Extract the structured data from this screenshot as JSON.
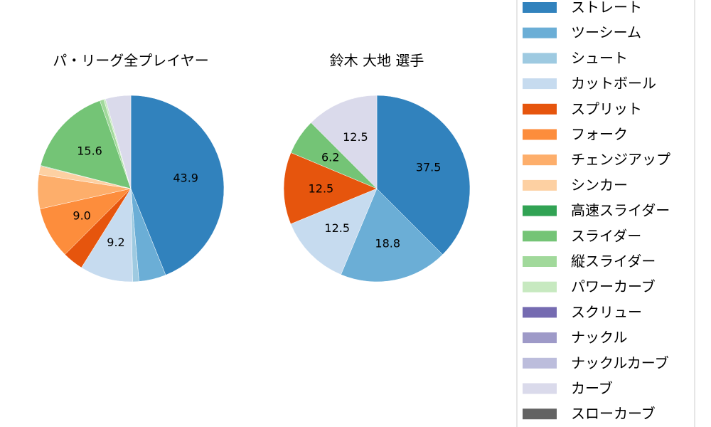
{
  "legend": {
    "entries": [
      {
        "label": "ストレート",
        "color": "#3182bd"
      },
      {
        "label": "ツーシーム",
        "color": "#6baed6"
      },
      {
        "label": "シュート",
        "color": "#9ecae1"
      },
      {
        "label": "カットボール",
        "color": "#c6dbef"
      },
      {
        "label": "スプリット",
        "color": "#e6550d"
      },
      {
        "label": "フォーク",
        "color": "#fd8d3c"
      },
      {
        "label": "チェンジアップ",
        "color": "#fdae6b"
      },
      {
        "label": "シンカー",
        "color": "#fdd0a2"
      },
      {
        "label": "高速スライダー",
        "color": "#31a354"
      },
      {
        "label": "スライダー",
        "color": "#74c476"
      },
      {
        "label": "縦スライダー",
        "color": "#a1d99b"
      },
      {
        "label": "パワーカーブ",
        "color": "#c7e9c0"
      },
      {
        "label": "スクリュー",
        "color": "#756bb1"
      },
      {
        "label": "ナックル",
        "color": "#9e9ac8"
      },
      {
        "label": "ナックルカーブ",
        "color": "#bcbddc"
      },
      {
        "label": "カーブ",
        "color": "#dadaeb"
      },
      {
        "label": "スローカーブ",
        "color": "#636363"
      }
    ]
  },
  "chart_data": [
    {
      "type": "pie",
      "title": "パ・リーグ全プレイヤー",
      "start_angle_deg": 90,
      "direction": "clockwise",
      "slices": [
        {
          "category": "ストレート",
          "value": 43.9,
          "label": "43.9"
        },
        {
          "category": "ツーシーム",
          "value": 4.7,
          "label": ""
        },
        {
          "category": "シュート",
          "value": 1.1,
          "label": ""
        },
        {
          "category": "カットボール",
          "value": 9.2,
          "label": "9.2"
        },
        {
          "category": "スプリット",
          "value": 3.6,
          "label": ""
        },
        {
          "category": "フォーク",
          "value": 9.0,
          "label": "9.0"
        },
        {
          "category": "チェンジアップ",
          "value": 5.9,
          "label": ""
        },
        {
          "category": "シンカー",
          "value": 1.5,
          "label": ""
        },
        {
          "category": "高速スライダー",
          "value": 0.1,
          "label": ""
        },
        {
          "category": "スライダー",
          "value": 15.6,
          "label": "15.6"
        },
        {
          "category": "縦スライダー",
          "value": 0.7,
          "label": ""
        },
        {
          "category": "パワーカーブ",
          "value": 0.3,
          "label": ""
        },
        {
          "category": "カーブ",
          "value": 4.4,
          "label": ""
        }
      ]
    },
    {
      "type": "pie",
      "title": "鈴木 大地  選手",
      "start_angle_deg": 90,
      "direction": "clockwise",
      "slices": [
        {
          "category": "ストレート",
          "value": 37.5,
          "label": "37.5"
        },
        {
          "category": "ツーシーム",
          "value": 18.8,
          "label": "18.8"
        },
        {
          "category": "カットボール",
          "value": 12.5,
          "label": "12.5"
        },
        {
          "category": "スプリット",
          "value": 12.5,
          "label": "12.5"
        },
        {
          "category": "スライダー",
          "value": 6.2,
          "label": "6.2"
        },
        {
          "category": "カーブ",
          "value": 12.5,
          "label": "12.5"
        }
      ]
    }
  ]
}
